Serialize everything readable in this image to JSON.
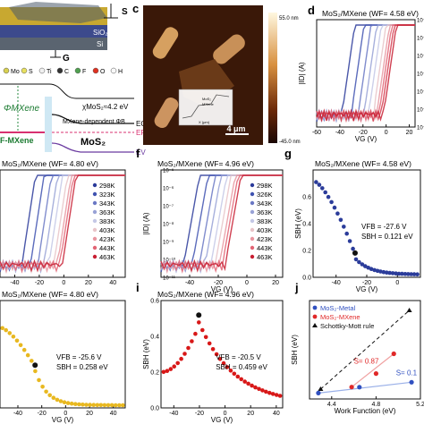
{
  "panel_letters": {
    "c": "c",
    "d": "d",
    "f": "f",
    "g": "g",
    "i": "i",
    "j": "j"
  },
  "panel_a": {
    "substrate_labels": [
      "SiO₂",
      "Si"
    ],
    "terminal_s": "S",
    "terminal_g": "G",
    "legend": [
      "Mo",
      "S",
      "Ti",
      "C",
      "F",
      "O",
      "H"
    ],
    "legend_colors": [
      "#d8d050",
      "#e8e060",
      "#f0f0f0",
      "#333333",
      "#50a050",
      "#e03020",
      "#f8f8f8"
    ]
  },
  "panel_b": {
    "phi_mxene": "ΦMXene",
    "chi_mos2": "χMoS₂≈4.2 eV",
    "f_mxene": "F-MXene",
    "barrier_label": "MXene-dependent ΦB",
    "mos2": "MoS₂",
    "ec": "EC",
    "ef": "EF",
    "ev": "EV"
  },
  "panel_c": {
    "scale_max": "55.0 nm",
    "scale_min": "-45.0 nm",
    "scale_bar": "4 μm",
    "inset_legend": [
      "MoS₂",
      "MXene"
    ],
    "inset_xlabel": "X (μm)"
  },
  "chart_data": [
    {
      "panel": "d",
      "type": "line",
      "title": "MoS₂/MXene (WF= 4.58 eV)",
      "xlabel": "VG (V)",
      "ylabel": "|ID| (A)",
      "xlim": [
        -60,
        25
      ],
      "ylim_exp": [
        -11,
        -5
      ],
      "log_y": true,
      "x_ticks": [
        "-60",
        "-40",
        "-20",
        "0",
        "20"
      ],
      "y_ticks": [
        "10⁻⁵",
        "10⁻⁶",
        "10⁻⁷",
        "10⁻⁸",
        "10⁻⁹",
        "10⁻¹⁰",
        "10⁻¹¹"
      ],
      "curve_colors": [
        "#2a3a9a",
        "#3f52b0",
        "#6a78c4",
        "#98a2d6",
        "#c4c8e6",
        "#e8c4c8",
        "#e896a0",
        "#e26474",
        "#d43a4c",
        "#c81e32"
      ],
      "vth": [
        -38,
        -30,
        -24,
        -19,
        -15,
        -11,
        -8,
        -6,
        -4,
        -2
      ]
    },
    {
      "panel": "e",
      "type": "line",
      "title": "MoS₂/MXene (WF= 4.80 eV)",
      "xlabel": "",
      "ylabel": "",
      "xlim": [
        -52,
        50
      ],
      "ylim_exp": [
        -11,
        -5
      ],
      "log_y": true,
      "x_ticks": [
        "-40",
        "-20",
        "0",
        "20",
        "40"
      ],
      "legend": [
        "298K",
        "323K",
        "343K",
        "363K",
        "383K",
        "403K",
        "423K",
        "443K",
        "463K"
      ],
      "curve_colors": [
        "#2a3a9a",
        "#3f52b0",
        "#6a78c4",
        "#98a2d6",
        "#c4c8e6",
        "#e8c4c8",
        "#e896a0",
        "#e26474",
        "#c81e32"
      ],
      "vth": [
        -34,
        -27,
        -21,
        -16,
        -12,
        -8,
        -5,
        -3,
        -1
      ]
    },
    {
      "panel": "f",
      "type": "line",
      "title": "MoS₂/MXene (WF= 4.96 eV)",
      "xlabel": "VG (V)",
      "ylabel": "|ID| (A)",
      "xlim": [
        -60,
        25
      ],
      "ylim_exp": [
        -11,
        -5
      ],
      "log_y": true,
      "x_ticks": [
        "-40",
        "-20",
        "0",
        "20",
        "40"
      ],
      "y_ticks": [
        "10⁻⁵",
        "10⁻⁶",
        "10⁻⁷",
        "10⁻⁸",
        "10⁻⁹",
        "10⁻¹⁰",
        "10⁻¹¹"
      ],
      "legend": [
        "298K",
        "326K",
        "343K",
        "363K",
        "383K",
        "403K",
        "423K",
        "443K",
        "463K"
      ],
      "curve_colors": [
        "#2a3a9a",
        "#3f52b0",
        "#6a78c4",
        "#98a2d6",
        "#c4c8e6",
        "#e8c4c8",
        "#e896a0",
        "#e26474",
        "#c81e32"
      ],
      "vth": [
        -44,
        -38,
        -33,
        -29,
        -25,
        -22,
        -19,
        -17,
        -15
      ]
    },
    {
      "panel": "g",
      "type": "scatter",
      "title": "MoS₂/MXene (WF= 4.58 eV)",
      "xlabel": "VG (V)",
      "ylabel": "SBH (eV)",
      "xlim": [
        -55,
        15
      ],
      "ylim": [
        0,
        0.8
      ],
      "x_ticks": [
        "-40",
        "-20",
        "0"
      ],
      "y_ticks": [
        "0.0",
        "0.2",
        "0.4",
        "0.6"
      ],
      "color": "#2b3c9a",
      "annotations": [
        "VFB = -27.6 V",
        "SBH = 0.121 eV"
      ],
      "vfb": -27.6,
      "sbh": 0.121,
      "start_sbh": 0.72
    },
    {
      "panel": "h",
      "type": "scatter",
      "title": "MoS₂/MXene (WF= 4.80 eV)",
      "xlabel": "VG (V)",
      "ylabel": "",
      "xlim": [
        -55,
        50
      ],
      "ylim": [
        0,
        0.8
      ],
      "x_ticks": [
        "-40",
        "-20",
        "0",
        "20",
        "40"
      ],
      "color": "#e8b820",
      "annotations": [
        "VFB = -25.6 V",
        "SBH = 0.258 eV"
      ],
      "vfb": -25.6,
      "sbh": 0.258,
      "start_sbh": 0.6
    },
    {
      "panel": "i",
      "type": "scatter",
      "title": "MoS₂/MXene (WF= 4.96 eV)",
      "xlabel": "VG (V)",
      "ylabel": "SBH (eV)",
      "xlim": [
        -50,
        45
      ],
      "ylim": [
        0,
        0.6
      ],
      "x_ticks": [
        "-40",
        "-20",
        "0",
        "20",
        "40"
      ],
      "y_ticks": [
        "0.0",
        "0.2",
        "0.4",
        "0.6"
      ],
      "color": "#d81818",
      "annotations": [
        "VFB = -20.5 V",
        "SBH = 0.459 eV"
      ],
      "vfb": -20.5,
      "sbh": 0.459,
      "start_sbh": 0.2
    },
    {
      "panel": "j",
      "type": "scatter",
      "xlabel": "Work Function (eV)",
      "ylabel": "SBH (eV)",
      "xlim": [
        4.2,
        5.2
      ],
      "ylim": [
        0,
        1.0
      ],
      "x_ticks": [
        "4.4",
        "4.8",
        "5.2"
      ],
      "legend": [
        "MoS₂-Metal",
        "MoS₂-MXene",
        "Schottky-Mott rule"
      ],
      "legend_colors": [
        "#3050c0",
        "#e02828",
        "#111111"
      ],
      "annotations": [
        "S= 0.87",
        "S= 0.1"
      ],
      "series": [
        {
          "name": "MoS₂-Metal",
          "x": [
            4.28,
            4.65,
            5.12
          ],
          "y": [
            0.06,
            0.12,
            0.17
          ]
        },
        {
          "name": "MoS₂-MXene",
          "x": [
            4.58,
            4.8,
            4.96
          ],
          "y": [
            0.121,
            0.258,
            0.459
          ]
        },
        {
          "name": "Schottky-Mott rule",
          "x": [
            4.3,
            5.1
          ],
          "y": [
            0.1,
            0.9
          ]
        }
      ]
    }
  ]
}
